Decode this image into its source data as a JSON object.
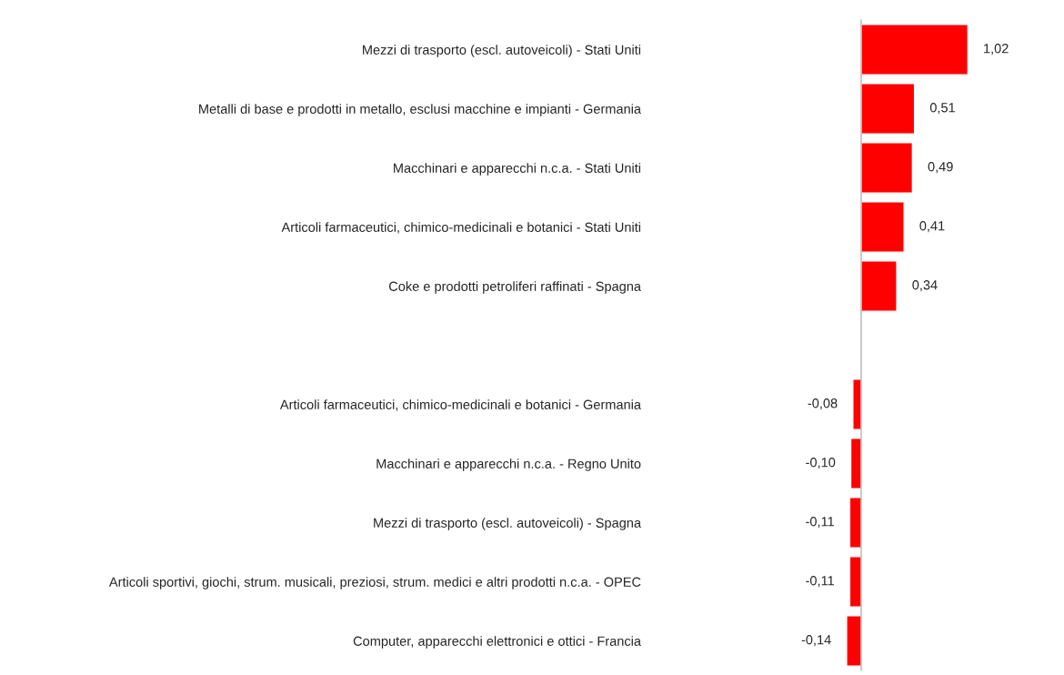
{
  "chart_data": {
    "type": "bar",
    "orientation": "horizontal",
    "categories": [
      "Mezzi di trasporto (escl. autoveicoli) - Stati Uniti",
      "Metalli di base e prodotti in metallo, esclusi macchine e impianti - Germania",
      "Macchinari e apparecchi n.c.a. - Stati Uniti",
      "Articoli farmaceutici, chimico-medicinali e botanici - Stati Uniti",
      "Coke e prodotti petroliferi raffinati - Spagna",
      null,
      "Articoli farmaceutici, chimico-medicinali e botanici - Germania",
      "Macchinari e apparecchi n.c.a. - Regno Unito",
      "Mezzi di trasporto (escl. autoveicoli) - Spagna",
      "Articoli sportivi, giochi, strum. musicali, preziosi, strum. medici e altri prodotti n.c.a. - OPEC",
      "Computer, apparecchi elettronici e ottici - Francia"
    ],
    "values": [
      1.02,
      0.51,
      0.49,
      0.41,
      0.34,
      null,
      -0.08,
      -0.1,
      -0.11,
      -0.11,
      -0.14
    ],
    "value_labels": [
      "1,02",
      "0,51",
      "0,49",
      "0,41",
      "0,34",
      null,
      "-0,08",
      "-0,10",
      "-0,11",
      "-0,11",
      "-0,14"
    ],
    "color": "#ff0000",
    "tick_labels": "y",
    "grid": false,
    "legend": false
  }
}
